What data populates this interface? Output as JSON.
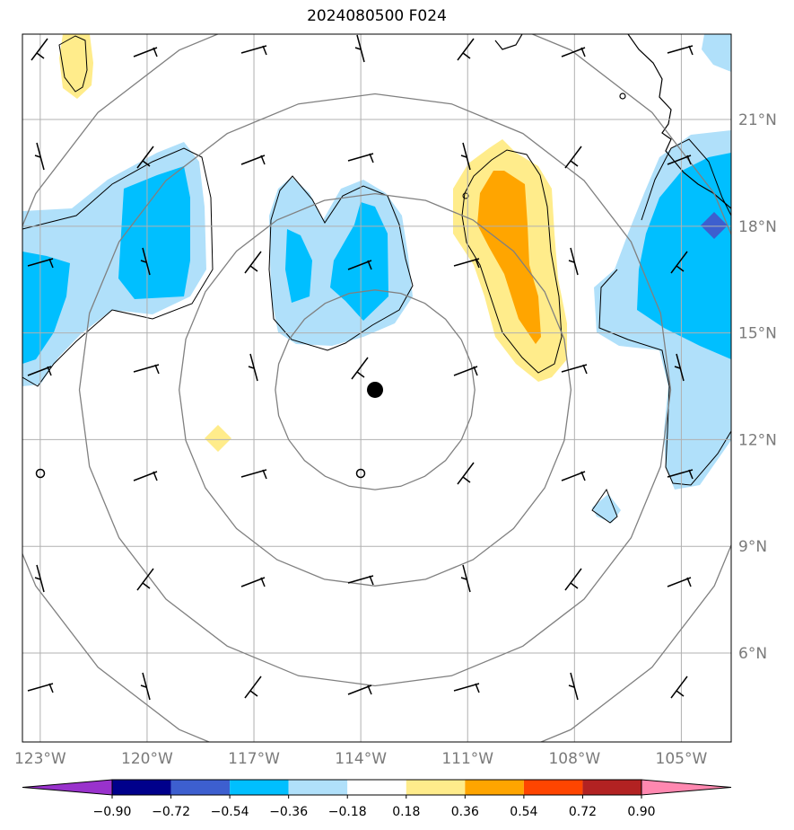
{
  "title": "2024080500 F024",
  "map": {
    "lon_labels": [
      "123°W",
      "120°W",
      "117°W",
      "114°W",
      "111°W",
      "108°W",
      "105°W"
    ],
    "lat_labels": [
      "21°N",
      "18°N",
      "15°N",
      "12°N",
      "9°N",
      "6°N"
    ],
    "lon_ticks": [
      -123,
      -120,
      -117,
      -114,
      -111,
      -108,
      -105
    ],
    "lat_ticks": [
      21,
      18,
      15,
      12,
      9,
      6
    ],
    "extent": {
      "lon_min": -123.5,
      "lon_max": -103.6,
      "lat_min": 3.5,
      "lat_max": 23.4
    },
    "storm_center": {
      "lon": -113.6,
      "lat": 13.4
    },
    "range_ring_radii_deg": [
      2.8,
      5.5,
      8.3,
      11.0
    ]
  },
  "colorbar": {
    "levels": [
      "−0.90",
      "−0.72",
      "−0.54",
      "−0.36",
      "−0.18",
      "0.18",
      "0.36",
      "0.54",
      "0.72",
      "0.90"
    ],
    "colors": [
      "#9932cc",
      "#00008b",
      "#3d5fcf",
      "#00bfff",
      "#b0e0fa",
      "#ffffff",
      "#ffec8b",
      "#ffa500",
      "#ff4500",
      "#b22222",
      "#ff88b0"
    ]
  },
  "colors": {
    "grid": "#b0b0b0",
    "ring": "#808080",
    "coast": "#000000",
    "light_blue": "#b0e0fa",
    "deep_sky": "#00bfff",
    "royal": "#3d5fcf",
    "light_yellow": "#ffec8b",
    "orange": "#ffa500"
  }
}
